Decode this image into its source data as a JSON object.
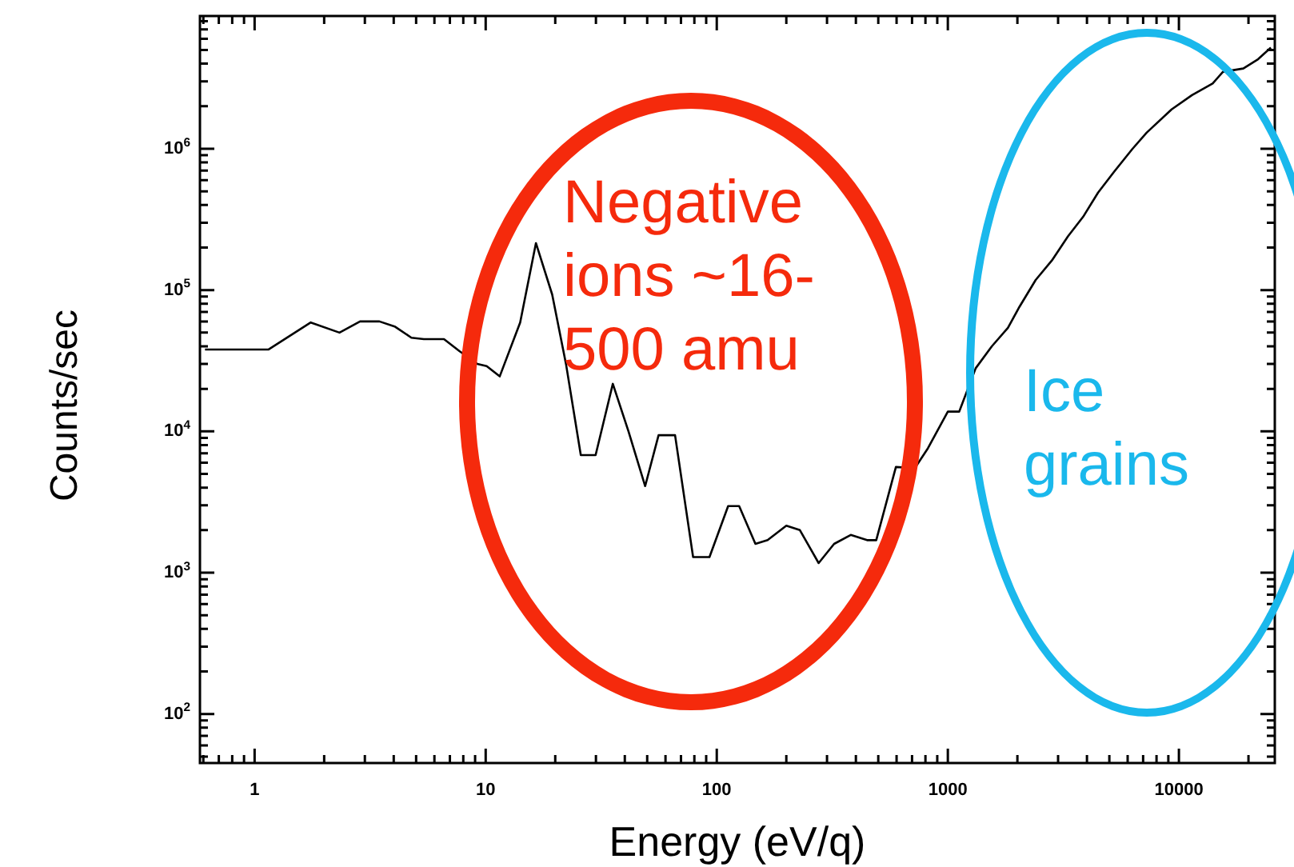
{
  "chart_data": {
    "type": "line",
    "xlabel": "Energy (eV/q)",
    "ylabel": "Counts/sec",
    "log": "xy",
    "grid": false,
    "legend": false,
    "marker": "none",
    "line_style": "solid",
    "xlim": [
      0.58,
      26000
    ],
    "ylim": [
      45,
      8700000
    ],
    "xticks": [
      1,
      10,
      100,
      1000,
      10000
    ],
    "yticks": [
      {
        "value": 100,
        "label": "10$^{2}$"
      },
      {
        "value": 1000,
        "label": "10$^{3}$"
      },
      {
        "value": 10000,
        "label": "10$^{4}$"
      },
      {
        "value": 100000,
        "label": "10$^{5}$"
      },
      {
        "value": 1000000,
        "label": "10$^{6}$"
      }
    ],
    "x": [
      0.61,
      1.15,
      1.75,
      2.33,
      2.86,
      3.47,
      4.06,
      4.77,
      5.4,
      6.6,
      7.7,
      9.2,
      10.1,
      11.5,
      14.1,
      16.5,
      19.4,
      22.3,
      25.8,
      29.9,
      35.5,
      41.5,
      49,
      56,
      66,
      79,
      93,
      112,
      125,
      147,
      166,
      200,
      229,
      276,
      322,
      380,
      447,
      490,
      596,
      720,
      820,
      1000,
      1120,
      1320,
      1550,
      1820,
      2040,
      2400,
      2820,
      3310,
      3850,
      4470,
      5250,
      6300,
      7250,
      9300,
      11400,
      14000,
      15500,
      19000,
      22000,
      25000
    ],
    "series": [
      {
        "color": "#000000",
        "values": [
          38000,
          38000,
          59000,
          50000,
          60000,
          60000,
          55000,
          46000,
          45000,
          45000,
          37000,
          30000,
          29000,
          24500,
          59000,
          215000,
          93000,
          29500,
          6800,
          6800,
          21700,
          10000,
          4100,
          9400,
          9400,
          1290,
          1290,
          2960,
          2960,
          1600,
          1700,
          2150,
          2000,
          1170,
          1600,
          1850,
          1700,
          1700,
          5600,
          5500,
          7600,
          13800,
          13800,
          28000,
          40000,
          54000,
          76000,
          118000,
          162000,
          240000,
          330000,
          490000,
          690000,
          1000000,
          1300000,
          1900000,
          2400000,
          2900000,
          3500000,
          3700000,
          4300000,
          5200000
        ]
      }
    ],
    "annotations": [
      "Negative ions ~16-500 amu",
      "Ice grains"
    ]
  }
}
